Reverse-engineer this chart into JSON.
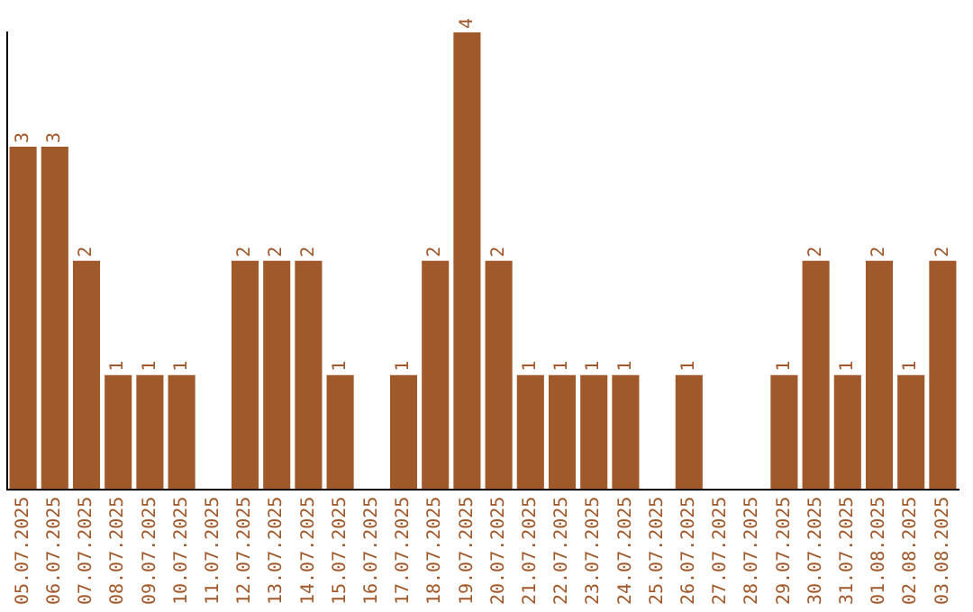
{
  "chart_data": {
    "type": "bar",
    "categories": [
      "05.07.2025",
      "06.07.2025",
      "07.07.2025",
      "08.07.2025",
      "09.07.2025",
      "10.07.2025",
      "11.07.2025",
      "12.07.2025",
      "13.07.2025",
      "14.07.2025",
      "15.07.2025",
      "16.07.2025",
      "17.07.2025",
      "18.07.2025",
      "19.07.2025",
      "20.07.2025",
      "21.07.2025",
      "22.07.2025",
      "23.07.2025",
      "24.07.2025",
      "25.07.2025",
      "26.07.2025",
      "27.07.2025",
      "28.07.2025",
      "29.07.2025",
      "30.07.2025",
      "31.07.2025",
      "01.08.2025",
      "02.08.2025",
      "03.08.2025"
    ],
    "values": [
      3,
      3,
      2,
      1,
      1,
      1,
      0,
      2,
      2,
      2,
      1,
      0,
      1,
      2,
      4,
      2,
      1,
      1,
      1,
      1,
      0,
      1,
      0,
      0,
      1,
      2,
      1,
      2,
      1,
      2
    ],
    "value_labels": [
      "3",
      "3",
      "2",
      "1",
      "1",
      "1",
      null,
      "2",
      "2",
      "2",
      "1",
      null,
      "1",
      "2",
      "4",
      "2",
      "1",
      "1",
      "1",
      "1",
      null,
      "1",
      null,
      null,
      "1",
      "2",
      "1",
      "2",
      "1",
      "2"
    ],
    "color": "#a0592b",
    "ylim": [
      0,
      4
    ],
    "tick_labels": "x",
    "grid": false,
    "legend": false
  }
}
